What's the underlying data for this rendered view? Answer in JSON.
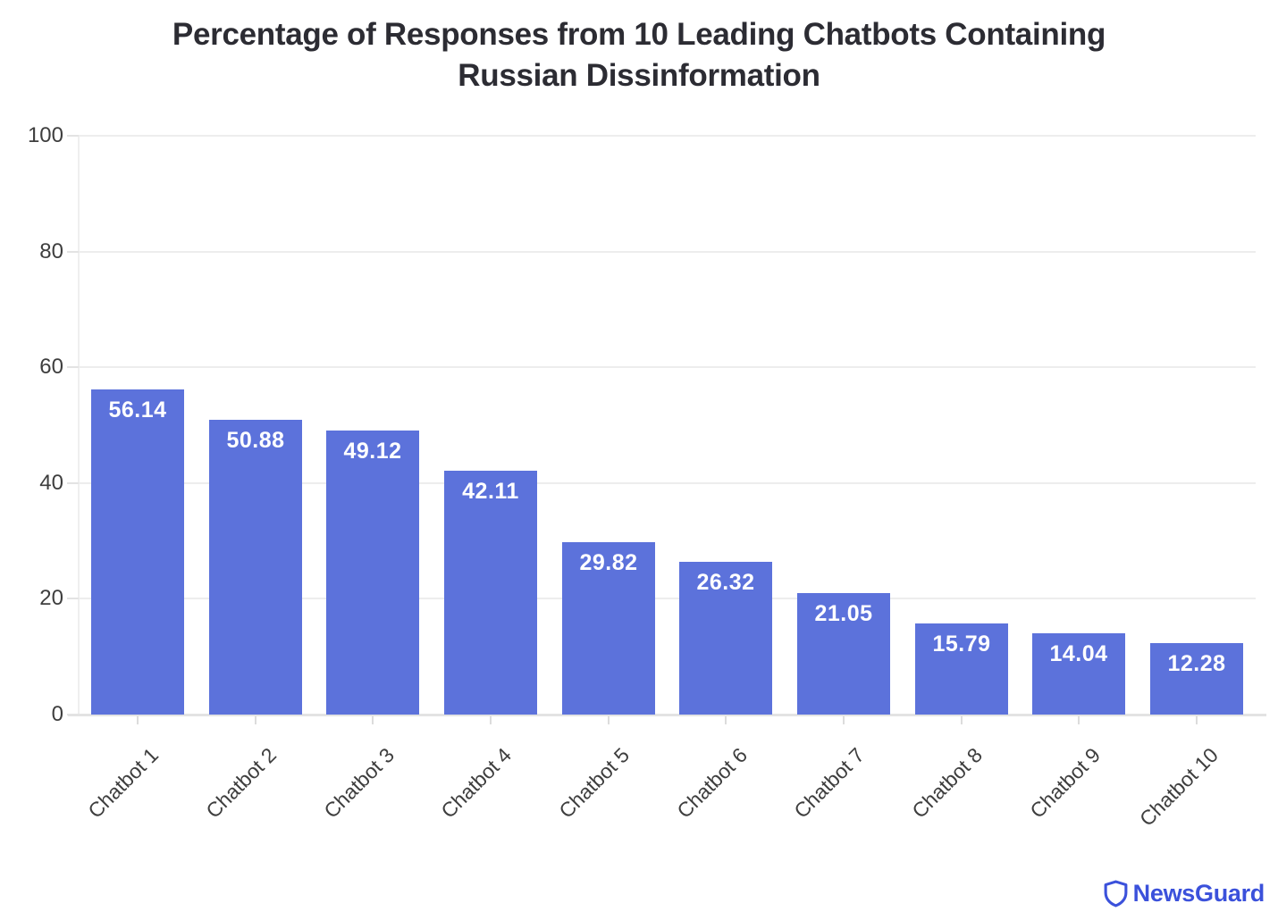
{
  "header": {
    "title_lines": [
      "Percentage of Responses from 10 Leading Chatbots Containing",
      "Russian Dissinformation"
    ]
  },
  "chart_data": {
    "type": "bar",
    "title": "Percentage of Responses from 10 Leading Chatbots Containing Russian Dissinformation",
    "categories": [
      "Chatbot 1",
      "Chatbot 2",
      "Chatbot 3",
      "Chatbot 4",
      "Chatbot 5",
      "Chatbot 6",
      "Chatbot 7",
      "Chatbot 8",
      "Chatbot 9",
      "Chatbot 10"
    ],
    "values": [
      56.14,
      50.88,
      49.12,
      42.11,
      29.82,
      26.32,
      21.05,
      15.79,
      14.04,
      12.28
    ],
    "value_labels": [
      "56.14",
      "50.88",
      "49.12",
      "42.11",
      "29.82",
      "26.32",
      "21.05",
      "15.79",
      "14.04",
      "12.28"
    ],
    "xlabel": "",
    "ylabel": "",
    "ylim": [
      0,
      100
    ],
    "yticks": [
      0,
      20,
      40,
      60,
      80,
      100
    ],
    "grid": true,
    "legend_position": "none",
    "bar_color": "#5C72DB",
    "value_label_color": "#ffffff",
    "tick_label_color": "#3e3e3e",
    "gridline_color": "#ededed"
  },
  "branding": {
    "logo_text": "NewsGuard",
    "logo_color": "#3B51DB",
    "logo_icon": "shield-icon"
  }
}
